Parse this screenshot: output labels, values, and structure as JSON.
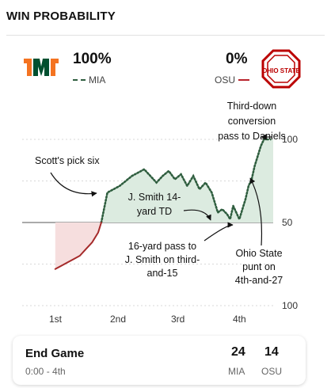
{
  "header": {
    "title": "WIN PROBABILITY"
  },
  "teams": {
    "left": {
      "abbr": "MIA",
      "probability": "100%",
      "color": "#2f5e3f",
      "logo_accent": "#f47321",
      "logo_main": "#005030",
      "logo_name": "miami-u-logo"
    },
    "right": {
      "abbr": "OSU",
      "probability": "0%",
      "color": "#b8242c",
      "logo_main": "#bb0000",
      "logo_name": "ohio-state-logo",
      "logo_text": "OHIO STATE"
    }
  },
  "chart_data": {
    "type": "line",
    "x_ticks": [
      "1st",
      "2nd",
      "3rd",
      "4th"
    ],
    "y_ticks": [
      "100",
      "50",
      "100"
    ],
    "ylim": [
      0,
      100
    ],
    "annotations": [
      {
        "text": "Third-down conversion pass to Daniels"
      },
      {
        "text": "Scott's pick six"
      },
      {
        "text": "J. Smith 14-yard TD"
      },
      {
        "text": "16-yard pass to J. Smith on third-and-15"
      },
      {
        "text": "Ohio State punt on 4th-and-27"
      }
    ],
    "series": [
      {
        "team": "MIA",
        "style": "dotted",
        "color": "#2f5e3f",
        "x": [
          1.75,
          1.85,
          1.95,
          2.05,
          2.15,
          2.25,
          2.35,
          2.45,
          2.55,
          2.65,
          2.75,
          2.85,
          2.95,
          3.05,
          3.15,
          3.25,
          3.35,
          3.45,
          3.55,
          3.65,
          3.72,
          3.8,
          3.85,
          3.9,
          3.95,
          4.0,
          4.05,
          4.1,
          4.15,
          4.2,
          4.25,
          4.3,
          4.35,
          4.4,
          4.45,
          4.5
        ],
        "y": [
          50,
          68,
          70,
          72,
          75,
          78,
          80,
          82,
          78,
          74,
          78,
          81,
          76,
          79,
          72,
          78,
          70,
          74,
          68,
          56,
          58,
          55,
          52,
          60,
          56,
          52,
          58,
          64,
          72,
          76,
          84,
          90,
          96,
          100,
          100,
          100
        ]
      },
      {
        "team": "OSU",
        "style": "solid",
        "color": "#a52a2a",
        "x": [
          1.0,
          1.1,
          1.2,
          1.3,
          1.4,
          1.5,
          1.6,
          1.7,
          1.75
        ],
        "y": [
          22,
          24,
          26,
          28,
          30,
          34,
          38,
          44,
          50
        ]
      }
    ]
  },
  "final": {
    "status": "End Game",
    "clock": "0:00 - 4th",
    "scores": [
      {
        "team": "MIA",
        "points": "24"
      },
      {
        "team": "OSU",
        "points": "14"
      }
    ]
  }
}
